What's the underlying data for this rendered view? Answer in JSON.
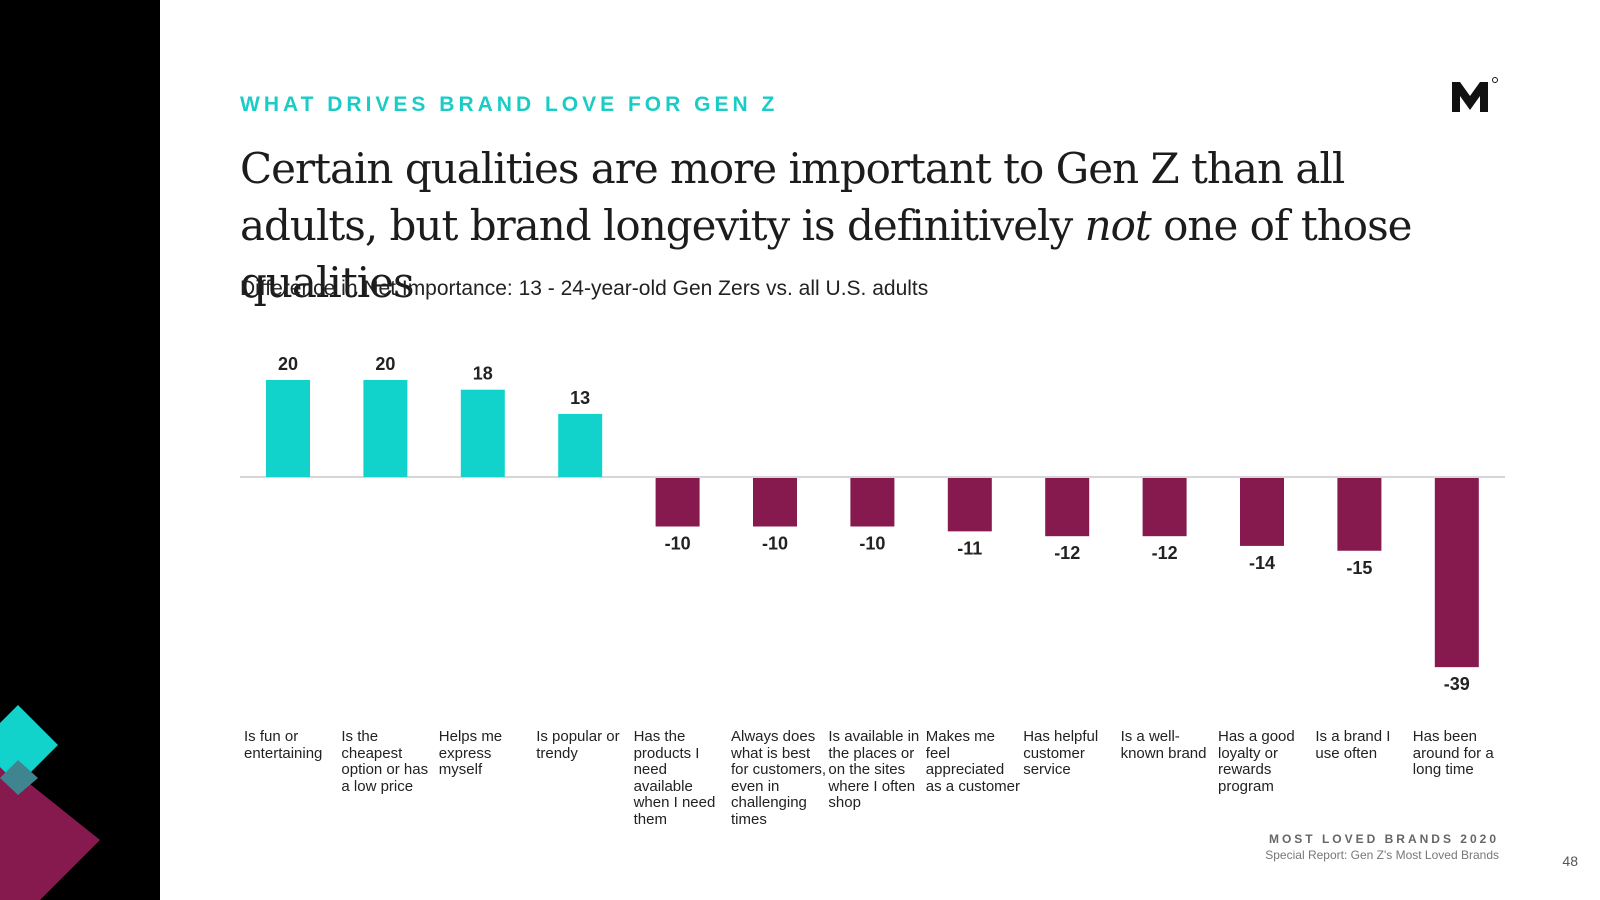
{
  "header": {
    "eyebrow": "WHAT DRIVES BRAND LOVE FOR GEN Z",
    "headline_part1": "Certain qualities are more important to Gen Z than all adults, but brand longevity is definitively ",
    "headline_emphasis": "not",
    "headline_part2": " one of those qualities",
    "subtitle": "Difference in Net Importance: 13 - 24-year-old Gen Zers vs. all U.S. adults"
  },
  "chart_data": {
    "type": "bar",
    "title": "Difference in Net Importance: 13 - 24-year-old Gen Zers vs. all U.S. adults",
    "xlabel": "",
    "ylabel": "",
    "ylim": [
      -39,
      20
    ],
    "grid": false,
    "legend": "none",
    "categories": [
      "Is fun or entertaining",
      "Is the cheapest option or has a low price",
      "Helps me express myself",
      "Is popular or trendy",
      "Has the products I need available when I need them",
      "Always does what is best for customers, even in challenging times",
      "Is available in the places or on the sites where I often shop",
      "Makes me feel appreciated as a customer",
      "Has helpful customer service",
      "Is a well-known brand",
      "Has a good loyalty or rewards program",
      "Is a brand I use often",
      "Has been around for a long time"
    ],
    "values": [
      20,
      20,
      18,
      13,
      -10,
      -10,
      -10,
      -11,
      -12,
      -12,
      -14,
      -15,
      -39
    ],
    "value_labels": [
      "20",
      "20",
      "18",
      "13",
      "-10",
      "-10",
      "-10",
      "-11",
      "-12",
      "-12",
      "-14",
      "-15",
      "-39"
    ],
    "colors": {
      "positive": "#12d3cc",
      "negative": "#86194e",
      "axis": "#d6d6d6"
    }
  },
  "footer": {
    "title": "MOST LOVED BRANDS 2020",
    "subtitle": "Special Report: Gen Z's Most Loved Brands",
    "page": "48"
  },
  "decor": {
    "black": "#000000",
    "teal": "#12d3cc",
    "magenta": "#86194e"
  }
}
